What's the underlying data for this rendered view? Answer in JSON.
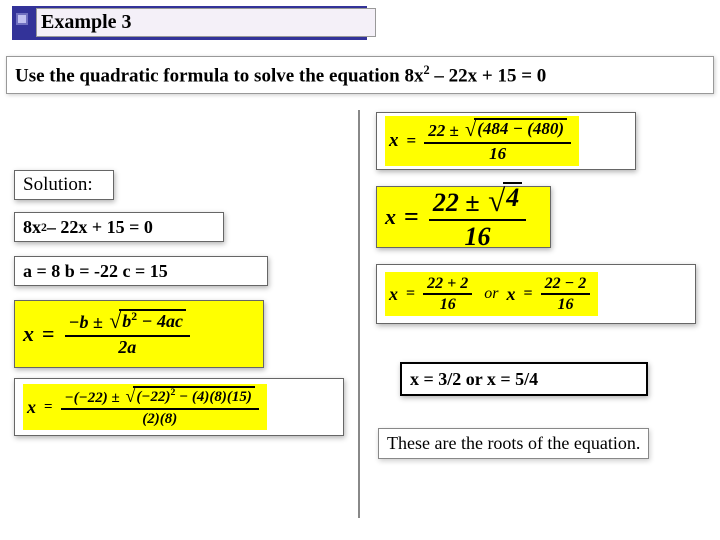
{
  "header": {
    "title": "Example 3"
  },
  "question": {
    "prompt": "Use the quadratic formula to solve the equation 8x",
    "exp1": "2",
    "prompt2": " – 22x + 15 = 0"
  },
  "left": {
    "solution_label": "Solution:",
    "equation": {
      "p1": "8x",
      "exp": "2",
      "p2": " – 22x + 15 = 0"
    },
    "coeffs": "a = 8   b = -22   c = 15",
    "quad_formula": {
      "x": "x",
      "eq": "=",
      "num": {
        "neg_b": "−b ± ",
        "rad": "b",
        "rad_exp": "2",
        "rad_rest": " − 4ac"
      },
      "den": "2a"
    },
    "sub_formula": {
      "x": "x",
      "eq": "=",
      "num": {
        "part1": "−(−22) ± ",
        "rad": "(−22)",
        "rad_exp": "2",
        "rad_rest": " − (4)(8)(15)"
      },
      "den": "(2)(8)"
    }
  },
  "right": {
    "step1": {
      "x": "x",
      "eq": "=",
      "num": {
        "part1": "22 ± ",
        "rad": "(484 − (480)"
      },
      "den": "16"
    },
    "step2": {
      "x": "x",
      "eq": "=",
      "num": {
        "part1": "22 ± ",
        "rad": "4"
      },
      "den": "16"
    },
    "step3": {
      "left": {
        "x": "x",
        "eq": "=",
        "num": "22 + 2",
        "den": "16"
      },
      "or": "or",
      "right": {
        "x": "x",
        "eq": "=",
        "num": "22 − 2",
        "den": "16"
      }
    },
    "answers": "x =  3/2  or   x = 5/4",
    "conclusion": "These are the roots of the equation."
  },
  "colors": {
    "header_bg": "#333399",
    "highlight": "#ffff00",
    "border": "#666666",
    "text": "#000000"
  }
}
